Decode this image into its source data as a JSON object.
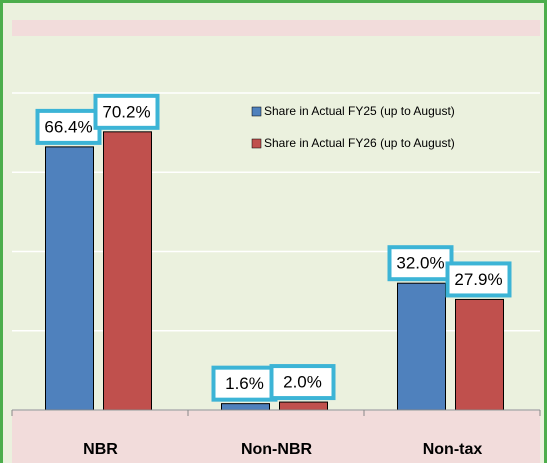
{
  "chart_data": {
    "type": "bar",
    "categories": [
      "NBR",
      "Non-NBR",
      "Non-tax"
    ],
    "series": [
      {
        "name": "Share in Actual FY25 (up to August)",
        "color": "#4f81bd",
        "values": [
          66.4,
          1.6,
          32.0
        ],
        "value_labels": [
          "66.4%",
          "1.6%",
          "32.0%"
        ]
      },
      {
        "name": "Share in Actual FY26 (up to August)",
        "color": "#c0504d",
        "values": [
          70.2,
          2.0,
          27.9
        ],
        "value_labels": [
          "70.2%",
          "2.0%",
          "27.9%"
        ]
      }
    ],
    "ylim": [
      0,
      80
    ],
    "yticks": [
      0,
      20,
      40,
      60,
      80
    ],
    "grid": true,
    "legend": "top-right"
  }
}
